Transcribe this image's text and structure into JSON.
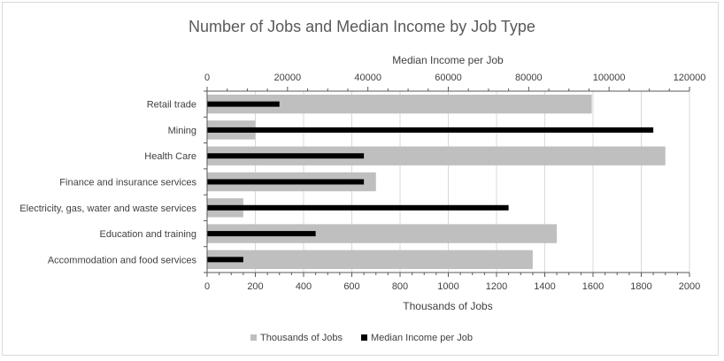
{
  "chart_data": {
    "type": "bar",
    "orientation": "horizontal",
    "title": "Number of Jobs and Median Income by Job Type",
    "categories": [
      "Retail trade",
      "Mining",
      "Health Care",
      "Finance and insurance services",
      "Electricity, gas, water and waste services",
      "Education and training",
      "Accommodation and food services"
    ],
    "series": [
      {
        "name": "Thousands of Jobs",
        "axis": "bottom",
        "color": "#bfbfbf",
        "values": [
          1595,
          200,
          1900,
          700,
          150,
          1450,
          1350
        ]
      },
      {
        "name": "Median Income per Job",
        "axis": "top",
        "color": "#000000",
        "values": [
          18000,
          111000,
          39000,
          39000,
          75000,
          27000,
          9000
        ]
      }
    ],
    "bottom_axis": {
      "label": "Thousands of Jobs",
      "range": [
        0,
        2000
      ],
      "ticks": [
        "0",
        "200",
        "400",
        "600",
        "800",
        "1000",
        "1200",
        "1400",
        "1600",
        "1800",
        "2000"
      ]
    },
    "top_axis": {
      "label": "Median Income per Job",
      "range": [
        0,
        120000
      ],
      "ticks": [
        "0",
        "20000",
        "40000",
        "60000",
        "80000",
        "100000",
        "120000"
      ]
    },
    "grid": true,
    "legend_position": "bottom"
  }
}
